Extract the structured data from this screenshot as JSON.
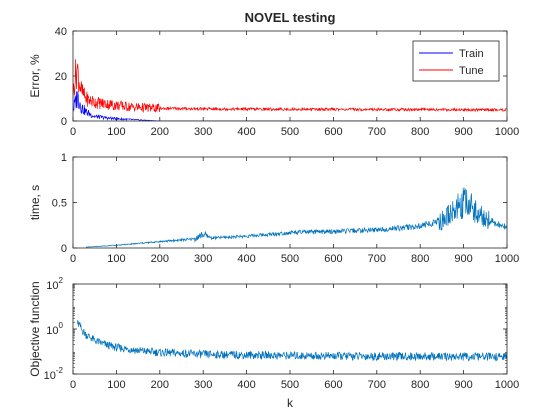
{
  "chart_data": [
    {
      "type": "line",
      "title": "NOVEL testing",
      "xlabel": "",
      "ylabel": "Error, %",
      "xlim": [
        0,
        1000
      ],
      "ylim": [
        0,
        40
      ],
      "x_ticks": [
        "0",
        "100",
        "200",
        "300",
        "400",
        "500",
        "600",
        "700",
        "800",
        "900",
        "1000"
      ],
      "y_ticks": [
        "0",
        "20",
        "40"
      ],
      "legend": {
        "position": "top-right",
        "entries": [
          "Train",
          "Tune"
        ]
      },
      "series": [
        {
          "name": "Train",
          "color": "#0000ff",
          "x": [
            0,
            5,
            10,
            15,
            20,
            30,
            40,
            50,
            60,
            80,
            100,
            120,
            140,
            160,
            180,
            200,
            300,
            400,
            500,
            600,
            700,
            800,
            900,
            1000
          ],
          "y": [
            5,
            8,
            11,
            9,
            6,
            4,
            3,
            2,
            1.8,
            1.3,
            1.0,
            0.8,
            0.6,
            0.4,
            0.2,
            0,
            0,
            0,
            0,
            0,
            0,
            0,
            0,
            0
          ]
        },
        {
          "name": "Tune",
          "color": "#ff0000",
          "x": [
            0,
            5,
            10,
            15,
            20,
            30,
            40,
            50,
            60,
            80,
            100,
            120,
            140,
            160,
            180,
            200,
            250,
            300,
            400,
            500,
            600,
            700,
            800,
            900,
            1000
          ],
          "y": [
            12,
            20,
            23,
            17,
            13,
            10,
            9,
            8.5,
            8,
            7.5,
            7,
            6.5,
            6.2,
            6,
            5.8,
            5.6,
            5.5,
            5.4,
            5.3,
            5.2,
            5.2,
            5.1,
            5.1,
            5.0,
            5.0
          ]
        }
      ]
    },
    {
      "type": "line",
      "title": "",
      "xlabel": "",
      "ylabel": "time, s",
      "xlim": [
        0,
        1000
      ],
      "ylim": [
        0,
        1
      ],
      "x_ticks": [
        "0",
        "100",
        "200",
        "300",
        "400",
        "500",
        "600",
        "700",
        "800",
        "900",
        "1000"
      ],
      "y_ticks": [
        "0",
        "0.5",
        "1"
      ],
      "series": [
        {
          "color": "#0072bd",
          "x": [
            30,
            100,
            200,
            280,
            300,
            320,
            400,
            480,
            500,
            600,
            700,
            800,
            850,
            880,
            900,
            920,
            950,
            980,
            1000
          ],
          "y": [
            0.01,
            0.03,
            0.07,
            0.1,
            0.15,
            0.11,
            0.13,
            0.16,
            0.17,
            0.18,
            0.2,
            0.24,
            0.3,
            0.42,
            0.5,
            0.45,
            0.32,
            0.26,
            0.23
          ]
        }
      ]
    },
    {
      "type": "line",
      "title": "",
      "xlabel": "k",
      "ylabel": "Objective function",
      "xlim": [
        0,
        1000
      ],
      "ylim": [
        0.01,
        100
      ],
      "yscale": "log",
      "x_ticks": [
        "0",
        "100",
        "200",
        "300",
        "400",
        "500",
        "600",
        "700",
        "800",
        "900",
        "1000"
      ],
      "y_ticks": [
        {
          "base": "10",
          "exp": "2"
        },
        {
          "base": "10",
          "exp": "0"
        },
        {
          "base": "10",
          "exp": "-2"
        }
      ],
      "series": [
        {
          "color": "#0072bd",
          "x": [
            10,
            15,
            20,
            30,
            50,
            75,
            100,
            150,
            200,
            300,
            400,
            500,
            600,
            700,
            800,
            900,
            1000
          ],
          "y": [
            1.8,
            1.5,
            0.9,
            0.55,
            0.3,
            0.2,
            0.15,
            0.11,
            0.09,
            0.075,
            0.07,
            0.066,
            0.063,
            0.061,
            0.06,
            0.059,
            0.058
          ]
        }
      ]
    }
  ]
}
